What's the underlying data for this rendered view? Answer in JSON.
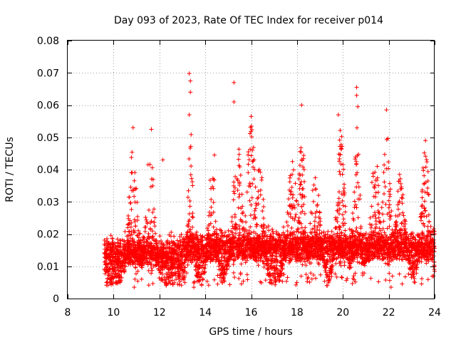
{
  "chart_data": {
    "type": "scatter",
    "title": "Day 093 of 2023, Rate Of TEC Index for receiver p014",
    "xlabel": "GPS time / hours",
    "ylabel": "ROTI / TECUs",
    "xlim": [
      8,
      24
    ],
    "ylim": [
      0,
      0.08
    ],
    "xticks": [
      "8",
      "10",
      "12",
      "14",
      "16",
      "18",
      "20",
      "22",
      "24"
    ],
    "yticks": [
      "0",
      "0.01",
      "0.02",
      "0.03",
      "0.04",
      "0.05",
      "0.06",
      "0.07",
      "0.08"
    ],
    "grid": true,
    "marker": "+",
    "color": "#ff0000",
    "series": [
      {
        "name": "ROTI",
        "x_start": 9.6,
        "x_end": 24.0,
        "typical_range": [
          0.005,
          0.022
        ],
        "notable_points": [
          {
            "x": 10.85,
            "y": 0.053
          },
          {
            "x": 11.65,
            "y": 0.0525
          },
          {
            "x": 13.3,
            "y": 0.0698
          },
          {
            "x": 13.35,
            "y": 0.0675
          },
          {
            "x": 13.35,
            "y": 0.064
          },
          {
            "x": 13.3,
            "y": 0.057
          },
          {
            "x": 15.25,
            "y": 0.067
          },
          {
            "x": 15.25,
            "y": 0.061
          },
          {
            "x": 16.0,
            "y": 0.0565
          },
          {
            "x": 18.2,
            "y": 0.06
          },
          {
            "x": 19.8,
            "y": 0.057
          },
          {
            "x": 20.6,
            "y": 0.0655
          },
          {
            "x": 20.6,
            "y": 0.063
          },
          {
            "x": 20.65,
            "y": 0.0595
          },
          {
            "x": 21.9,
            "y": 0.0585
          },
          {
            "x": 23.6,
            "y": 0.049
          },
          {
            "x": 14.4,
            "y": 0.0445
          },
          {
            "x": 12.15,
            "y": 0.043
          },
          {
            "x": 17.8,
            "y": 0.0425
          },
          {
            "x": 21.5,
            "y": 0.041
          },
          {
            "x": 10.9,
            "y": 0.0035
          },
          {
            "x": 13.5,
            "y": 0.0035
          },
          {
            "x": 19.3,
            "y": 0.004
          },
          {
            "x": 22.1,
            "y": 0.0035
          }
        ]
      }
    ]
  }
}
